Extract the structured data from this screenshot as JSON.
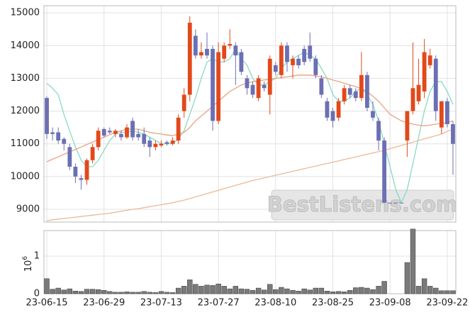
{
  "chart_data": {
    "type": "candlestick",
    "categories": [
      "23-06-15",
      null,
      null,
      null,
      null,
      null,
      null,
      null,
      null,
      null,
      "23-06-29",
      null,
      null,
      null,
      null,
      null,
      null,
      null,
      null,
      null,
      "23-07-13",
      null,
      null,
      null,
      null,
      null,
      null,
      null,
      null,
      null,
      "23-07-27",
      null,
      null,
      null,
      null,
      null,
      null,
      null,
      null,
      null,
      "23-08-10",
      null,
      null,
      null,
      null,
      null,
      null,
      null,
      null,
      null,
      "23-08-25",
      null,
      null,
      null,
      null,
      null,
      null,
      null,
      null,
      null,
      "23-09-08",
      null,
      null,
      null,
      null,
      null,
      null,
      null,
      null,
      null,
      "23-09-22",
      null
    ],
    "open": [
      12400,
      11350,
      11350,
      11150,
      10900,
      10300,
      9950,
      9900,
      10500,
      10900,
      11450,
      11400,
      11300,
      11300,
      11200,
      11700,
      11300,
      11300,
      11100,
      10900,
      10950,
      11050,
      11000,
      11100,
      12000,
      12500,
      14300,
      13700,
      13900,
      13900,
      11700,
      13600,
      14000,
      14000,
      13800,
      13000,
      12800,
      12400,
      12800,
      12500,
      13400,
      13100,
      14000,
      13400,
      13600,
      13900,
      14000,
      13600,
      13000,
      12300,
      12000,
      11800,
      12300,
      12700,
      12600,
      12400,
      13100,
      12000,
      11700,
      11100,
      9200,
      9200,
      9200,
      11100,
      12000,
      12300,
      12600,
      13400,
      13600,
      11500,
      12300,
      11600
    ],
    "high": [
      12450,
      11500,
      11500,
      11200,
      11000,
      10400,
      10050,
      10550,
      11000,
      11500,
      11500,
      11500,
      11450,
      11400,
      11600,
      11800,
      11450,
      11500,
      11200,
      11100,
      11100,
      11100,
      11200,
      11900,
      12700,
      14900,
      14500,
      14100,
      14400,
      14000,
      14100,
      14100,
      14500,
      14100,
      13900,
      13100,
      12900,
      13100,
      12900,
      13700,
      13500,
      14100,
      14100,
      13700,
      13700,
      14000,
      14400,
      13700,
      13100,
      12400,
      12100,
      12400,
      12800,
      12800,
      12700,
      13800,
      13200,
      12300,
      11800,
      11200,
      9200,
      9200,
      9200,
      12000,
      14100,
      13600,
      14200,
      13900,
      13700,
      12300,
      12400,
      11700
    ],
    "low": [
      11150,
      11100,
      11000,
      10800,
      10200,
      9800,
      9600,
      9750,
      10400,
      10800,
      11200,
      11300,
      11200,
      11100,
      11150,
      11100,
      11100,
      10900,
      10600,
      10800,
      10900,
      10950,
      10950,
      11000,
      11800,
      12300,
      13600,
      13600,
      13600,
      11400,
      11600,
      13500,
      13900,
      12800,
      13100,
      12500,
      12400,
      12300,
      12600,
      11900,
      13100,
      13000,
      13200,
      13000,
      13300,
      13400,
      13500,
      13000,
      12400,
      11700,
      11500,
      11700,
      12200,
      12400,
      12300,
      12300,
      12000,
      11700,
      10800,
      9200,
      9200,
      9200,
      9200,
      10600,
      11900,
      12200,
      12400,
      13300,
      11700,
      11300,
      11500,
      10050
    ],
    "close": [
      11300,
      11300,
      11100,
      11000,
      10300,
      10000,
      9900,
      10500,
      10900,
      11400,
      11250,
      11350,
      11400,
      11200,
      11500,
      11200,
      11200,
      11000,
      10900,
      11000,
      11000,
      11000,
      11100,
      11800,
      12500,
      14700,
      13700,
      13800,
      13700,
      11700,
      13800,
      14000,
      14050,
      13700,
      13200,
      12700,
      12500,
      13000,
      12700,
      13600,
      13200,
      14000,
      13500,
      13600,
      13400,
      13500,
      13600,
      13100,
      12500,
      11800,
      11700,
      12300,
      12700,
      12500,
      12400,
      13100,
      12100,
      11800,
      11100,
      9200,
      9200,
      9200,
      9200,
      12000,
      12700,
      12800,
      13800,
      13700,
      12000,
      12300,
      11600,
      11000
    ],
    "up_color": "#e2491a",
    "down_color": "#6b6fb3",
    "moving_averages": [
      {
        "color": "#86dbc2",
        "values": [
          12850,
          12700,
          12500,
          11900,
          11400,
          10900,
          10500,
          10300,
          10300,
          10500,
          10800,
          11100,
          11300,
          11350,
          11350,
          11400,
          11350,
          11300,
          11200,
          11100,
          11000,
          11000,
          11000,
          11150,
          11400,
          11900,
          12400,
          13000,
          13500,
          13600,
          13500,
          13500,
          13600,
          13900,
          13600,
          13400,
          13000,
          12800,
          12800,
          12900,
          13000,
          13300,
          13500,
          13600,
          13700,
          13800,
          13700,
          13600,
          13300,
          13000,
          12500,
          12300,
          12300,
          12400,
          12600,
          12700,
          12500,
          12200,
          11700,
          11000,
          10300,
          9600,
          9200,
          9600,
          10400,
          11200,
          12000,
          12600,
          12900,
          12900,
          12600,
          12200
        ]
      },
      {
        "color": "#e9a283",
        "values": [
          10450,
          10530,
          10600,
          10680,
          10750,
          10830,
          10900,
          10980,
          11050,
          11130,
          11200,
          11280,
          11350,
          11400,
          11450,
          11450,
          11450,
          11400,
          11350,
          11320,
          11300,
          11270,
          11250,
          11300,
          11350,
          11500,
          11700,
          11850,
          12000,
          12150,
          12300,
          12450,
          12600,
          12700,
          12800,
          12850,
          12900,
          12920,
          12950,
          12970,
          13000,
          13020,
          13050,
          13070,
          13100,
          13100,
          13100,
          13070,
          13050,
          13000,
          12950,
          12900,
          12850,
          12800,
          12750,
          12680,
          12600,
          12450,
          12300,
          12100,
          11900,
          11800,
          11700,
          11650,
          11600,
          11570,
          11550,
          11570,
          11600,
          11620,
          11650,
          11700
        ]
      },
      {
        "color": "#ebb996",
        "values": [
          8650,
          8680,
          8700,
          8720,
          8740,
          8760,
          8780,
          8800,
          8820,
          8840,
          8860,
          8880,
          8910,
          8940,
          8970,
          9000,
          9020,
          9050,
          9080,
          9110,
          9140,
          9170,
          9200,
          9240,
          9280,
          9330,
          9380,
          9430,
          9480,
          9530,
          9580,
          9630,
          9680,
          9730,
          9780,
          9830,
          9880,
          9920,
          9960,
          10000,
          10040,
          10080,
          10120,
          10160,
          10200,
          10240,
          10280,
          10320,
          10360,
          10400,
          10440,
          10480,
          10520,
          10560,
          10600,
          10640,
          10680,
          10720,
          10760,
          10800,
          10850,
          10900,
          10950,
          11000,
          11050,
          11100,
          11150,
          11200,
          11250,
          11300,
          11380,
          11450
        ]
      }
    ],
    "ylim": [
      8610,
      15220
    ],
    "yticks": [
      9000,
      10000,
      11000,
      12000,
      13000,
      14000,
      15000
    ],
    "grid": true,
    "volume": {
      "color": "#7a7a7a",
      "values": [
        400000,
        120000,
        150000,
        100000,
        130000,
        70000,
        60000,
        120000,
        120000,
        110000,
        90000,
        60000,
        40000,
        40000,
        50000,
        40000,
        40000,
        60000,
        40000,
        30000,
        60000,
        40000,
        30000,
        150000,
        200000,
        370000,
        250000,
        200000,
        230000,
        220000,
        260000,
        200000,
        130000,
        200000,
        130000,
        120000,
        90000,
        150000,
        100000,
        250000,
        110000,
        170000,
        130000,
        90000,
        70000,
        130000,
        100000,
        150000,
        150000,
        70000,
        50000,
        60000,
        50000,
        90000,
        160000,
        170000,
        150000,
        110000,
        200000,
        330000,
        0,
        0,
        0,
        830000,
        1720000,
        200000,
        400000,
        200000,
        150000,
        80000,
        80000,
        80000
      ],
      "ylim": [
        0,
        1680000
      ],
      "yticks": [
        0,
        {
          "value": 1000000,
          "label": "1"
        }
      ],
      "offset": {
        "base": "10",
        "exponent": "6"
      }
    },
    "watermark": "BestListens.com"
  }
}
